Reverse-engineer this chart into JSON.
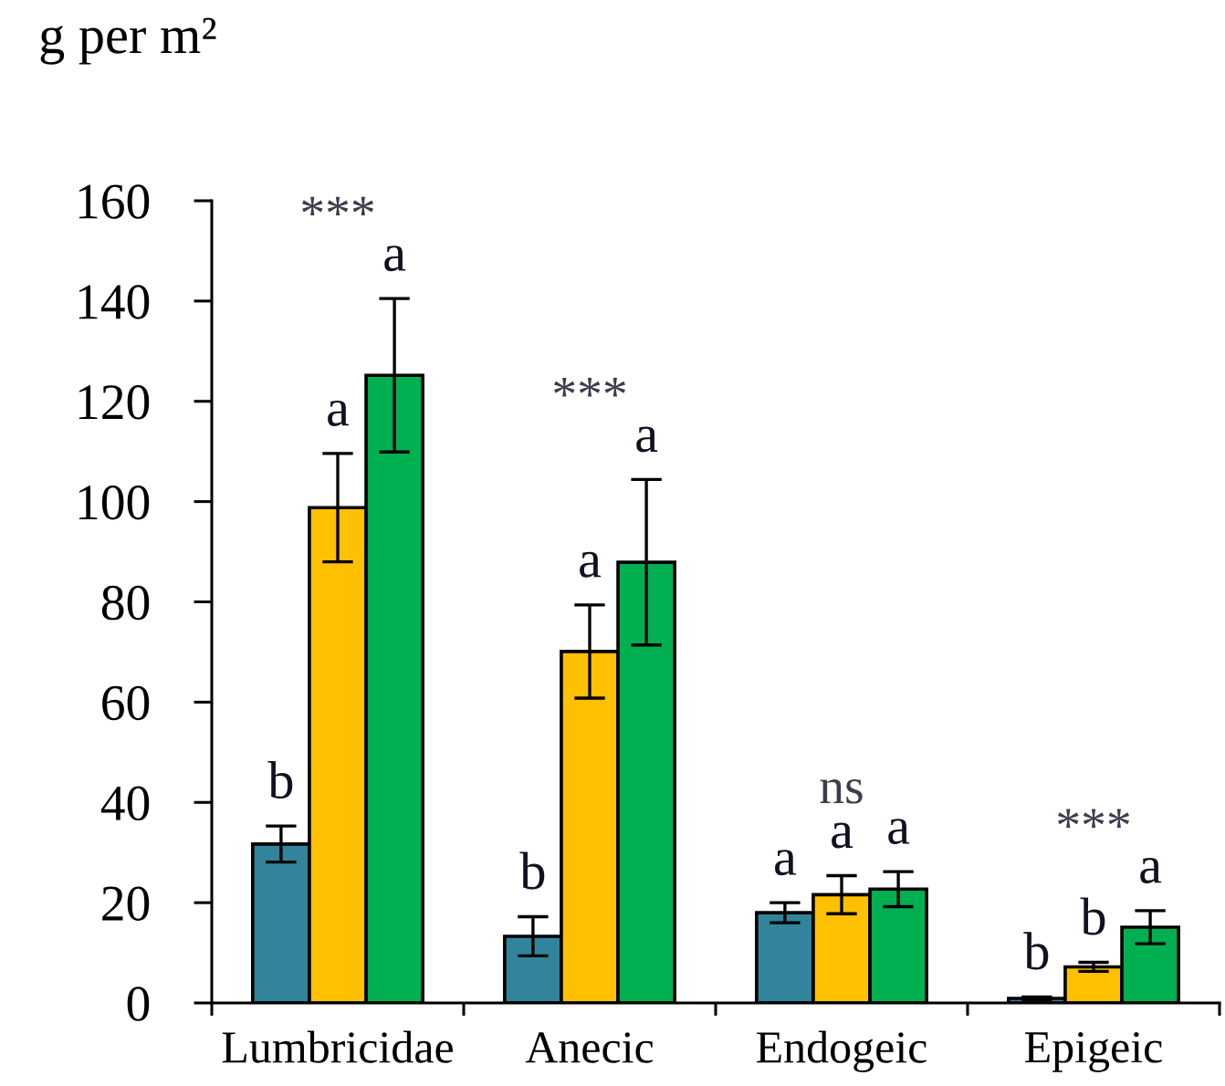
{
  "chart_data": {
    "type": "bar",
    "ylabel": "g per m²",
    "categories": [
      "Lumbricidae",
      "Anecic",
      "Endogeic",
      "Epigeic"
    ],
    "series": [
      {
        "color": "#31849b",
        "values": [
          31.7,
          13.3,
          18.0,
          0.9
        ],
        "errors": [
          3.6,
          3.9,
          2.0,
          0.3
        ],
        "value_labels": [
          "b",
          "b",
          "a",
          "b"
        ]
      },
      {
        "color": "#ffc000",
        "values": [
          98.8,
          70.1,
          21.6,
          7.2
        ],
        "errors": [
          10.8,
          9.3,
          3.8,
          0.9
        ],
        "value_labels": [
          "a",
          "a",
          "a",
          "b"
        ]
      },
      {
        "color": "#00b050",
        "values": [
          125.2,
          87.9,
          22.7,
          15.1
        ],
        "errors": [
          15.3,
          16.5,
          3.5,
          3.3
        ],
        "value_labels": [
          "a",
          "a",
          "a",
          "a"
        ]
      }
    ],
    "ylim": [
      0,
      160
    ],
    "yticks": [
      0,
      20,
      40,
      60,
      80,
      100,
      120,
      140,
      160
    ],
    "annotations": [
      "***",
      "***",
      "ns",
      "***"
    ]
  }
}
